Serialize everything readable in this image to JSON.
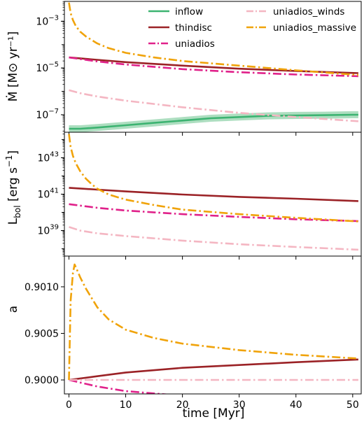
{
  "figure": {
    "xlabel": "time [Myr]",
    "colors": {
      "inflow": "#3cb371",
      "inflow_band": "#9fd8b5",
      "thindisc": "#9b2226",
      "uniadios": "#e0218a",
      "uniadios_winds": "#f4b6c2",
      "uniadios_massive": "#f0a30a"
    }
  },
  "chart_data": [
    {
      "type": "line",
      "panel": "top",
      "ylabel": "Ṁ [M⊙ yr⁻¹]",
      "yscale": "log",
      "xlim": [
        -0.8,
        51.5
      ],
      "ylim_log10": [
        -7.75,
        -2.15
      ],
      "yticks": [
        {
          "value_log10": -7,
          "base": "10",
          "exp": "−7"
        },
        {
          "value_log10": -5,
          "base": "10",
          "exp": "−5"
        },
        {
          "value_log10": -3,
          "base": "10",
          "exp": "−3"
        }
      ],
      "xticks": [
        0,
        10,
        20,
        30,
        40,
        50
      ],
      "show_xticklabels": false,
      "legend": {
        "placement": "top-right",
        "entries": [
          {
            "label": "inflow",
            "series": "inflow",
            "dashed": false
          },
          {
            "label": "uniadios_winds",
            "series": "uniadios_winds",
            "dashed": true
          },
          {
            "label": "thindisc",
            "series": "thindisc",
            "dashed": false
          },
          {
            "label": "uniadios_massive",
            "series": "uniadios_massive",
            "dashed": true
          },
          {
            "label": "uniadios",
            "series": "uniadios",
            "dashed": true
          }
        ]
      },
      "series": [
        {
          "name": "inflow",
          "color_key": "inflow",
          "dashed": false,
          "band": 0.15,
          "x": [
            0,
            2,
            5,
            10,
            15,
            20,
            25,
            30,
            35,
            40,
            45,
            50,
            51
          ],
          "y_log10": [
            -7.6,
            -7.6,
            -7.55,
            -7.45,
            -7.35,
            -7.25,
            -7.15,
            -7.1,
            -7.05,
            -7.03,
            -7.02,
            -7.0,
            -7.0
          ]
        },
        {
          "name": "thindisc",
          "color_key": "thindisc",
          "dashed": false,
          "x": [
            0,
            5,
            10,
            20,
            30,
            40,
            51
          ],
          "y_log10": [
            -4.55,
            -4.65,
            -4.75,
            -4.9,
            -5.03,
            -5.13,
            -5.22
          ]
        },
        {
          "name": "uniadios",
          "color_key": "uniadios",
          "dashed": true,
          "x": [
            0,
            5,
            10,
            20,
            30,
            40,
            51
          ],
          "y_log10": [
            -4.55,
            -4.72,
            -4.85,
            -5.05,
            -5.18,
            -5.28,
            -5.35
          ]
        },
        {
          "name": "uniadios_winds",
          "color_key": "uniadios_winds",
          "dashed": true,
          "x": [
            0,
            2,
            5,
            10,
            20,
            30,
            40,
            51
          ],
          "y_log10": [
            -5.95,
            -6.08,
            -6.22,
            -6.4,
            -6.68,
            -6.92,
            -7.1,
            -7.28
          ]
        },
        {
          "name": "uniadios_massive",
          "color_key": "uniadios_massive",
          "dashed": true,
          "x": [
            0,
            0.3,
            0.7,
            1.2,
            2,
            3,
            4,
            5,
            7,
            10,
            15,
            20,
            30,
            40,
            51
          ],
          "y_log10": [
            -2.2,
            -2.65,
            -2.95,
            -3.2,
            -3.45,
            -3.65,
            -3.8,
            -3.95,
            -4.15,
            -4.35,
            -4.55,
            -4.7,
            -4.9,
            -5.1,
            -5.3
          ]
        }
      ]
    },
    {
      "type": "line",
      "panel": "middle",
      "ylabel": "L_bol [erg s⁻¹]",
      "ylabel_parts": {
        "main": "L",
        "sub": "bol",
        "units": " [erg s",
        "sup": "−1",
        "close": "]"
      },
      "yscale": "log",
      "xlim": [
        -0.8,
        51.5
      ],
      "ylim_log10": [
        37.6,
        44.4
      ],
      "yticks": [
        {
          "value_log10": 39,
          "base": "10",
          "exp": "39"
        },
        {
          "value_log10": 41,
          "base": "10",
          "exp": "41"
        },
        {
          "value_log10": 43,
          "base": "10",
          "exp": "43"
        }
      ],
      "xticks": [
        0,
        10,
        20,
        30,
        40,
        50
      ],
      "show_xticklabels": false,
      "series": [
        {
          "name": "thindisc",
          "color_key": "thindisc",
          "dashed": false,
          "x": [
            0,
            5,
            10,
            20,
            30,
            40,
            51
          ],
          "y_log10": [
            41.35,
            41.25,
            41.15,
            40.98,
            40.85,
            40.75,
            40.62
          ]
        },
        {
          "name": "uniadios",
          "color_key": "uniadios",
          "dashed": true,
          "x": [
            0,
            5,
            10,
            20,
            30,
            40,
            51
          ],
          "y_log10": [
            40.45,
            40.25,
            40.1,
            39.9,
            39.75,
            39.62,
            39.52
          ]
        },
        {
          "name": "uniadios_winds",
          "color_key": "uniadios_winds",
          "dashed": true,
          "x": [
            0,
            2,
            5,
            10,
            20,
            30,
            40,
            51
          ],
          "y_log10": [
            39.2,
            39.0,
            38.85,
            38.7,
            38.45,
            38.25,
            38.1,
            37.95
          ]
        },
        {
          "name": "uniadios_massive",
          "color_key": "uniadios_massive",
          "dashed": true,
          "x": [
            0,
            0.3,
            0.7,
            1.2,
            2,
            3,
            4,
            5,
            7,
            10,
            15,
            20,
            30,
            40,
            51
          ],
          "y_log10": [
            44.3,
            43.6,
            43.1,
            42.7,
            42.25,
            41.85,
            41.55,
            41.3,
            40.98,
            40.7,
            40.4,
            40.15,
            39.9,
            39.7,
            39.5
          ]
        }
      ]
    },
    {
      "type": "line",
      "panel": "bottom",
      "ylabel": "a",
      "yscale": "linear",
      "xlim": [
        -0.8,
        51.5
      ],
      "ylim": [
        0.89985,
        0.90133
      ],
      "yticks": [
        {
          "value": 0.9,
          "label": "0.9000"
        },
        {
          "value": 0.9005,
          "label": "0.9005"
        },
        {
          "value": 0.901,
          "label": "0.9010"
        }
      ],
      "xticks": [
        0,
        10,
        20,
        30,
        40,
        50
      ],
      "show_xticklabels": true,
      "series": [
        {
          "name": "thindisc",
          "color_key": "thindisc",
          "dashed": false,
          "x": [
            0,
            5,
            10,
            20,
            30,
            40,
            51
          ],
          "y": [
            0.9,
            0.90004,
            0.90008,
            0.90013,
            0.90016,
            0.90019,
            0.90022
          ]
        },
        {
          "name": "uniadios",
          "color_key": "uniadios",
          "dashed": true,
          "x": [
            0,
            5,
            10,
            20,
            30,
            40,
            51
          ],
          "y": [
            0.9,
            0.89993,
            0.89988,
            0.89983,
            0.8998,
            0.89977,
            0.89975
          ]
        },
        {
          "name": "uniadios_winds",
          "color_key": "uniadios_winds",
          "dashed": true,
          "x": [
            0,
            51
          ],
          "y": [
            0.9,
            0.9
          ]
        },
        {
          "name": "uniadios_massive",
          "color_key": "uniadios_massive",
          "dashed": true,
          "x": [
            0,
            0.3,
            0.7,
            1.0,
            1.3,
            2,
            3,
            4,
            5,
            7,
            10,
            15,
            20,
            30,
            40,
            51
          ],
          "y": [
            0.9,
            0.90085,
            0.90115,
            0.90124,
            0.9012,
            0.9011,
            0.90098,
            0.90088,
            0.90078,
            0.90065,
            0.90054,
            0.90045,
            0.90039,
            0.90032,
            0.90027,
            0.90023
          ]
        }
      ]
    }
  ]
}
